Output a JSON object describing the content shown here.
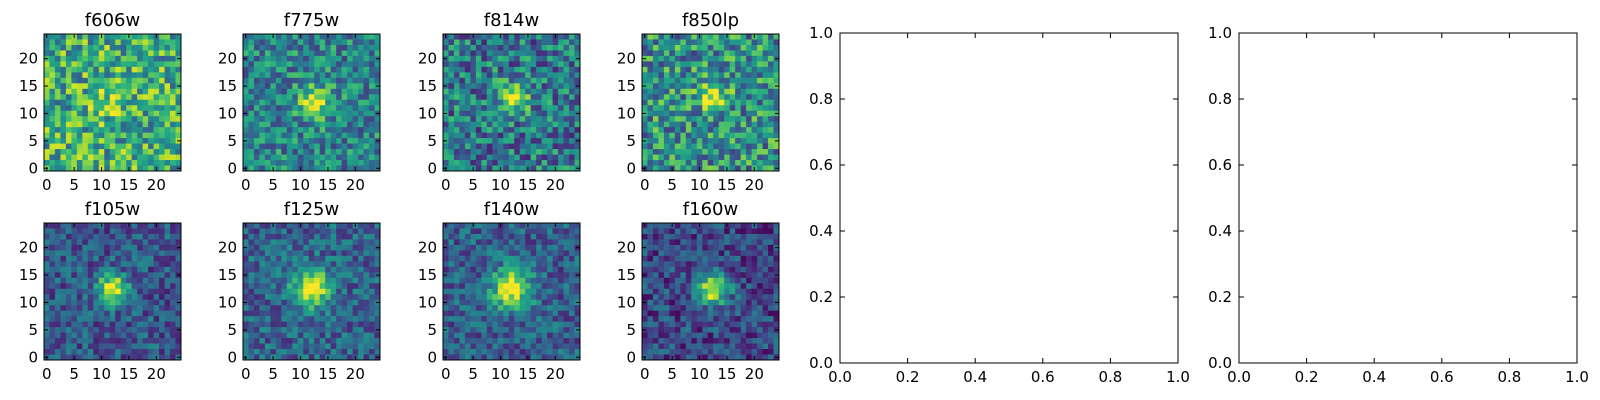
{
  "chart_data": [
    {
      "type": "heatmap",
      "title": "f606w",
      "xticks": [
        0,
        5,
        10,
        15,
        20
      ],
      "yticks": [
        0,
        5,
        10,
        15,
        20
      ],
      "xlim": [
        -0.5,
        24.5
      ],
      "ylim": [
        -0.5,
        24.5
      ],
      "grid_size": 25,
      "colormap": "viridis",
      "source": {
        "x": 12,
        "y": 12,
        "strength": 0.15,
        "width": 2.5
      },
      "background": 0.62,
      "noise": 0.32,
      "seed": 11
    },
    {
      "type": "heatmap",
      "title": "f775w",
      "xticks": [
        0,
        5,
        10,
        15,
        20
      ],
      "yticks": [
        0,
        5,
        10,
        15,
        20
      ],
      "xlim": [
        -0.5,
        24.5
      ],
      "ylim": [
        -0.5,
        24.5
      ],
      "grid_size": 25,
      "colormap": "viridis",
      "source": {
        "x": 12.5,
        "y": 12,
        "strength": 0.55,
        "width": 2.0
      },
      "background": 0.45,
      "noise": 0.26,
      "seed": 23
    },
    {
      "type": "heatmap",
      "title": "f814w",
      "xticks": [
        0,
        5,
        10,
        15,
        20
      ],
      "yticks": [
        0,
        5,
        10,
        15,
        20
      ],
      "xlim": [
        -0.5,
        24.5
      ],
      "ylim": [
        -0.5,
        24.5
      ],
      "grid_size": 25,
      "colormap": "viridis",
      "source": {
        "x": 12.5,
        "y": 13,
        "strength": 0.6,
        "width": 1.8
      },
      "background": 0.4,
      "noise": 0.3,
      "seed": 37
    },
    {
      "type": "heatmap",
      "title": "f850lp",
      "xticks": [
        0,
        5,
        10,
        15,
        20
      ],
      "yticks": [
        0,
        5,
        10,
        15,
        20
      ],
      "xlim": [
        -0.5,
        24.5
      ],
      "ylim": [
        -0.5,
        24.5
      ],
      "grid_size": 25,
      "colormap": "viridis",
      "source": {
        "x": 12.5,
        "y": 13,
        "strength": 0.45,
        "width": 1.8
      },
      "background": 0.5,
      "noise": 0.32,
      "seed": 41
    },
    {
      "type": "heatmap",
      "title": "f105w",
      "xticks": [
        0,
        5,
        10,
        15,
        20
      ],
      "yticks": [
        0,
        5,
        10,
        15,
        20
      ],
      "xlim": [
        -0.5,
        24.5
      ],
      "ylim": [
        -0.5,
        24.5
      ],
      "grid_size": 25,
      "colormap": "viridis",
      "source": {
        "x": 12,
        "y": 12.5,
        "strength": 0.75,
        "width": 1.8
      },
      "background": 0.28,
      "noise": 0.2,
      "seed": 53
    },
    {
      "type": "heatmap",
      "title": "f125w",
      "xticks": [
        0,
        5,
        10,
        15,
        20
      ],
      "yticks": [
        0,
        5,
        10,
        15,
        20
      ],
      "xlim": [
        -0.5,
        24.5
      ],
      "ylim": [
        -0.5,
        24.5
      ],
      "grid_size": 25,
      "colormap": "viridis",
      "source": {
        "x": 12,
        "y": 12.5,
        "strength": 0.7,
        "width": 2.4
      },
      "background": 0.32,
      "noise": 0.2,
      "seed": 67
    },
    {
      "type": "heatmap",
      "title": "f140w",
      "xticks": [
        0,
        5,
        10,
        15,
        20
      ],
      "yticks": [
        0,
        5,
        10,
        15,
        20
      ],
      "xlim": [
        -0.5,
        24.5
      ],
      "ylim": [
        -0.5,
        24.5
      ],
      "grid_size": 25,
      "colormap": "viridis",
      "source": {
        "x": 12,
        "y": 12.5,
        "strength": 0.7,
        "width": 2.6
      },
      "background": 0.3,
      "noise": 0.2,
      "seed": 71
    },
    {
      "type": "heatmap",
      "title": "f160w",
      "xticks": [
        0,
        5,
        10,
        15,
        20
      ],
      "yticks": [
        0,
        5,
        10,
        15,
        20
      ],
      "xlim": [
        -0.5,
        24.5
      ],
      "ylim": [
        -0.5,
        24.5
      ],
      "grid_size": 25,
      "colormap": "viridis",
      "source": {
        "x": 12.5,
        "y": 12.5,
        "strength": 0.8,
        "width": 2.0
      },
      "background": 0.22,
      "noise": 0.2,
      "seed": 83
    },
    {
      "type": "line",
      "title": "",
      "xlim": [
        0,
        1
      ],
      "ylim": [
        0,
        1
      ],
      "xticks": [
        0.0,
        0.2,
        0.4,
        0.6,
        0.8,
        1.0
      ],
      "yticks": [
        0.0,
        0.2,
        0.4,
        0.6,
        0.8,
        1.0
      ],
      "tick_format": "0.0",
      "series": []
    },
    {
      "type": "line",
      "title": "",
      "xlim": [
        0,
        1
      ],
      "ylim": [
        0,
        1
      ],
      "xticks": [
        0.0,
        0.2,
        0.4,
        0.6,
        0.8,
        1.0
      ],
      "yticks": [
        0.0,
        0.2,
        0.4,
        0.6,
        0.8,
        1.0
      ],
      "tick_format": "0.0",
      "series": []
    }
  ]
}
